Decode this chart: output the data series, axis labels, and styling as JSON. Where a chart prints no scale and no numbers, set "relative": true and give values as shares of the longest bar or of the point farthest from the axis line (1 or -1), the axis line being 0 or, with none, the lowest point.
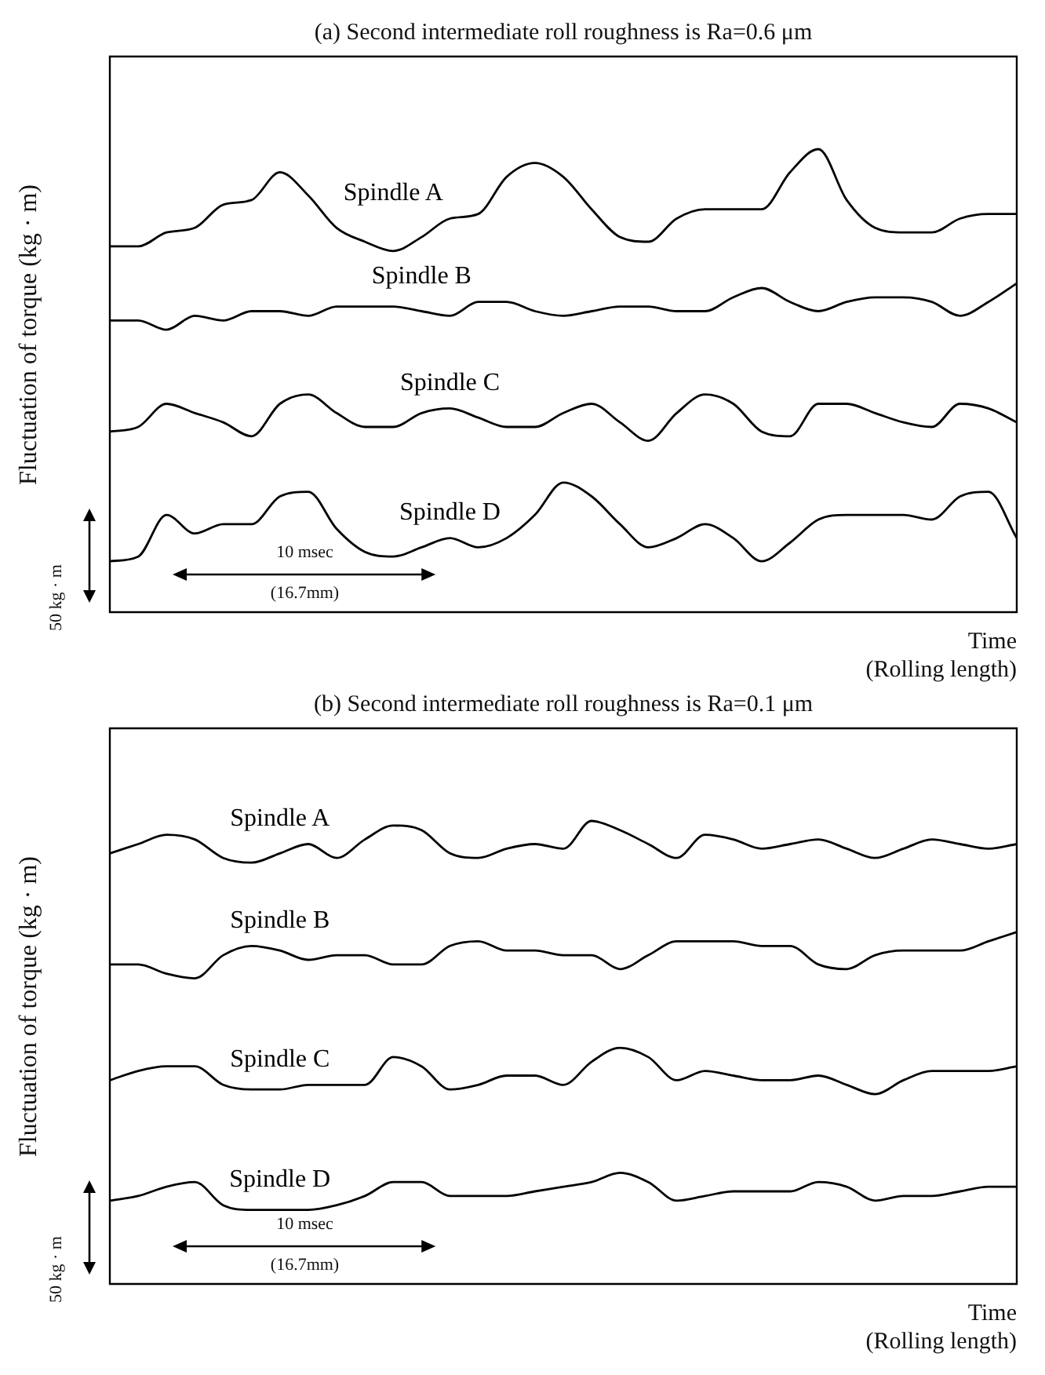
{
  "chart_data": [
    {
      "type": "line",
      "title": "(a) Second intermediate roll roughness is Ra=0.6 μm",
      "ylabel": "Fluctuation of torque (kg · m)",
      "xlabel": "Time\n(Rolling length)",
      "relative": true,
      "legend": false,
      "marker": "none",
      "grid": false,
      "categories": [
        null,
        null,
        null,
        null,
        null,
        null,
        null,
        null,
        null,
        null,
        null,
        null,
        null,
        null,
        null,
        null,
        null,
        null,
        null,
        null,
        null,
        null,
        null,
        null,
        null,
        null,
        null,
        null,
        null,
        null,
        null,
        null,
        null
      ],
      "annotations": [
        "50 kg · m",
        "10 msec",
        "(16.7mm)"
      ],
      "series": [
        {
          "name": "Spindle A",
          "color": "#000000",
          "values": [
            0.79,
            0.79,
            0.82,
            0.83,
            0.88,
            0.89,
            0.95,
            0.9,
            0.83,
            0.8,
            0.78,
            0.81,
            0.85,
            0.86,
            0.94,
            0.97,
            0.94,
            0.87,
            0.81,
            0.8,
            0.85,
            0.87,
            0.87,
            0.87,
            0.95,
            1.0,
            0.89,
            0.83,
            0.82,
            0.82,
            0.85,
            0.86,
            0.86
          ]
        },
        {
          "name": "Spindle B",
          "color": "#000000",
          "values": [
            0.63,
            0.63,
            0.61,
            0.64,
            0.63,
            0.65,
            0.65,
            0.64,
            0.66,
            0.66,
            0.66,
            0.65,
            0.64,
            0.67,
            0.67,
            0.65,
            0.64,
            0.65,
            0.66,
            0.66,
            0.65,
            0.65,
            0.68,
            0.7,
            0.67,
            0.65,
            0.67,
            0.68,
            0.68,
            0.67,
            0.64,
            0.67,
            0.71
          ]
        },
        {
          "name": "Spindle C",
          "color": "#000000",
          "values": [
            0.39,
            0.4,
            0.45,
            0.43,
            0.41,
            0.38,
            0.45,
            0.47,
            0.43,
            0.4,
            0.4,
            0.43,
            0.44,
            0.42,
            0.4,
            0.4,
            0.43,
            0.45,
            0.41,
            0.37,
            0.43,
            0.47,
            0.45,
            0.39,
            0.38,
            0.45,
            0.45,
            0.43,
            0.41,
            0.4,
            0.45,
            0.44,
            0.41
          ]
        },
        {
          "name": "Spindle D",
          "color": "#000000",
          "values": [
            0.11,
            0.12,
            0.21,
            0.17,
            0.19,
            0.19,
            0.25,
            0.26,
            0.18,
            0.13,
            0.12,
            0.14,
            0.16,
            0.14,
            0.16,
            0.21,
            0.28,
            0.25,
            0.19,
            0.14,
            0.16,
            0.19,
            0.16,
            0.11,
            0.15,
            0.2,
            0.21,
            0.21,
            0.21,
            0.2,
            0.25,
            0.26,
            0.16
          ]
        }
      ]
    },
    {
      "type": "line",
      "title": "(b) Second intermediate roll roughness is Ra=0.1 μm",
      "ylabel": "Fluctuation of torque (kg · m)",
      "xlabel": "Time\n(Rolling length)",
      "relative": true,
      "legend": false,
      "marker": "none",
      "grid": false,
      "categories": [
        null,
        null,
        null,
        null,
        null,
        null,
        null,
        null,
        null,
        null,
        null,
        null,
        null,
        null,
        null,
        null,
        null,
        null,
        null,
        null,
        null,
        null,
        null,
        null,
        null,
        null,
        null,
        null,
        null,
        null,
        null,
        null,
        null
      ],
      "annotations": [
        "50 kg · m",
        "10 msec",
        "(16.7mm)"
      ],
      "series": [
        {
          "name": "Spindle A",
          "color": "#000000",
          "values": [
            0.93,
            0.95,
            0.97,
            0.96,
            0.92,
            0.91,
            0.93,
            0.95,
            0.92,
            0.96,
            0.99,
            0.98,
            0.93,
            0.92,
            0.94,
            0.95,
            0.94,
            1.0,
            0.98,
            0.95,
            0.92,
            0.97,
            0.96,
            0.94,
            0.95,
            0.96,
            0.94,
            0.92,
            0.94,
            0.96,
            0.95,
            0.94,
            0.95
          ]
        },
        {
          "name": "Spindle B",
          "color": "#000000",
          "values": [
            0.69,
            0.69,
            0.67,
            0.66,
            0.71,
            0.73,
            0.72,
            0.7,
            0.71,
            0.71,
            0.69,
            0.69,
            0.73,
            0.74,
            0.72,
            0.72,
            0.71,
            0.71,
            0.68,
            0.71,
            0.74,
            0.74,
            0.74,
            0.73,
            0.73,
            0.69,
            0.68,
            0.71,
            0.72,
            0.72,
            0.72,
            0.74,
            0.76
          ]
        },
        {
          "name": "Spindle C",
          "color": "#000000",
          "values": [
            0.44,
            0.46,
            0.47,
            0.47,
            0.43,
            0.42,
            0.42,
            0.43,
            0.43,
            0.43,
            0.49,
            0.47,
            0.42,
            0.43,
            0.45,
            0.45,
            0.43,
            0.48,
            0.51,
            0.49,
            0.44,
            0.46,
            0.45,
            0.44,
            0.44,
            0.45,
            0.43,
            0.41,
            0.44,
            0.46,
            0.46,
            0.46,
            0.47
          ]
        },
        {
          "name": "Spindle D",
          "color": "#000000",
          "values": [
            0.18,
            0.19,
            0.21,
            0.22,
            0.17,
            0.16,
            0.16,
            0.16,
            0.17,
            0.19,
            0.22,
            0.22,
            0.19,
            0.19,
            0.19,
            0.2,
            0.21,
            0.22,
            0.24,
            0.22,
            0.18,
            0.19,
            0.2,
            0.2,
            0.2,
            0.22,
            0.21,
            0.18,
            0.19,
            0.19,
            0.2,
            0.21,
            0.21
          ]
        }
      ]
    }
  ]
}
